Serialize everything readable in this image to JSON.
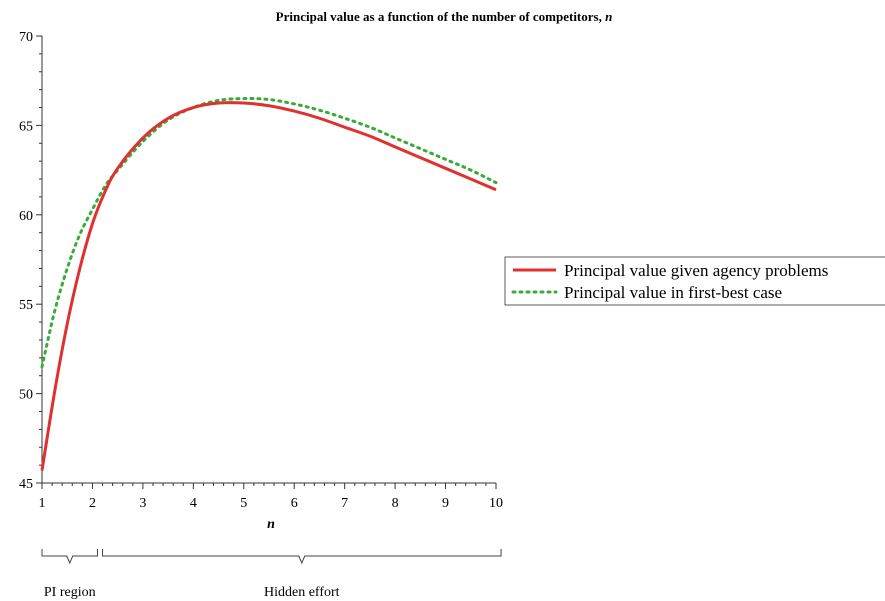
{
  "chart_data": {
    "type": "line",
    "title": "Principal value as a function of the number of competitors, ",
    "title_var": "n",
    "xlabel": "n",
    "ylabel": "",
    "xlim": [
      1,
      10
    ],
    "ylim": [
      45,
      70
    ],
    "xticks": [
      1,
      2,
      3,
      4,
      5,
      6,
      7,
      8,
      9,
      10
    ],
    "yticks": [
      45,
      50,
      55,
      60,
      65,
      70
    ],
    "grid": false,
    "legend_position": "right",
    "series": [
      {
        "name": "Principal value given agency problems",
        "style": "solid",
        "color": "#e03030",
        "x": [
          1,
          1.25,
          1.5,
          1.75,
          2,
          2.25,
          2.5,
          3,
          3.5,
          4,
          4.5,
          5,
          5.5,
          6,
          6.5,
          7,
          7.5,
          8,
          8.5,
          9,
          9.5,
          10
        ],
        "y": [
          45.7,
          50.1,
          53.9,
          57.0,
          59.5,
          61.3,
          62.6,
          64.3,
          65.4,
          66.0,
          66.25,
          66.25,
          66.1,
          65.8,
          65.4,
          64.9,
          64.4,
          63.8,
          63.2,
          62.6,
          62.0,
          61.4
        ]
      },
      {
        "name": "Principal value in first-best case",
        "style": "dotted",
        "color": "#3aaa3a",
        "x": [
          1,
          1.25,
          1.5,
          1.75,
          2,
          2.25,
          2.5,
          3,
          3.5,
          4,
          4.5,
          5,
          5.5,
          6,
          6.5,
          7,
          7.5,
          8,
          8.5,
          9,
          9.5,
          10
        ],
        "y": [
          51.5,
          54.6,
          57.0,
          58.9,
          60.3,
          61.6,
          62.5,
          64.1,
          65.3,
          66.0,
          66.4,
          66.5,
          66.45,
          66.2,
          65.85,
          65.4,
          64.9,
          64.3,
          63.7,
          63.1,
          62.5,
          61.8
        ]
      }
    ],
    "annotations": [
      {
        "text": "PI region",
        "from_x": 1,
        "to_x": 2.1
      },
      {
        "text": "Hidden effort",
        "from_x": 2.2,
        "to_x": 10.1
      }
    ]
  }
}
